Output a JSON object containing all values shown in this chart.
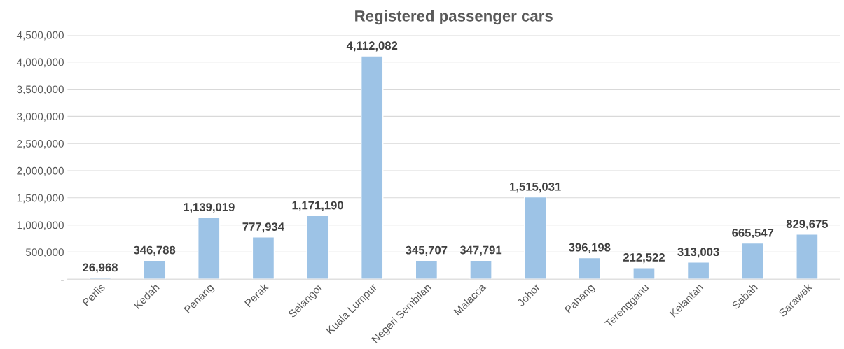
{
  "chart_data": {
    "type": "bar",
    "title": "Registered passenger cars",
    "categories": [
      "Perlis",
      "Kedah",
      "Penang",
      "Perak",
      "Selangor",
      "Kuala Lumpur",
      "Negeri Sembilan",
      "Malacca",
      "Johor",
      "Pahang",
      "Terengganu",
      "Kelantan",
      "Sabah",
      "Sarawak"
    ],
    "values": [
      26968,
      346788,
      1139019,
      777934,
      1171190,
      4112082,
      345707,
      347791,
      1515031,
      396198,
      212522,
      313003,
      665547,
      829675
    ],
    "value_labels": [
      "26,968",
      "346,788",
      "1,139,019",
      "777,934",
      "1,171,190",
      "4,112,082",
      "345,707",
      "347,791",
      "1,515,031",
      "396,198",
      "212,522",
      "313,003",
      "665,547",
      "829,675"
    ],
    "color": "#9dc3e6",
    "ylim": [
      0,
      4500000
    ],
    "yticks": [
      {
        "value": 0,
        "label": "-"
      },
      {
        "value": 500000,
        "label": "500,000"
      },
      {
        "value": 1000000,
        "label": "1,000,000"
      },
      {
        "value": 1500000,
        "label": "1,500,000"
      },
      {
        "value": 2000000,
        "label": "2,000,000"
      },
      {
        "value": 2500000,
        "label": "2,500,000"
      },
      {
        "value": 3000000,
        "label": "3,000,000"
      },
      {
        "value": 3500000,
        "label": "3,500,000"
      },
      {
        "value": 4000000,
        "label": "4,000,000"
      },
      {
        "value": 4500000,
        "label": "4,500,000"
      }
    ],
    "grid": "y",
    "legend": false
  }
}
